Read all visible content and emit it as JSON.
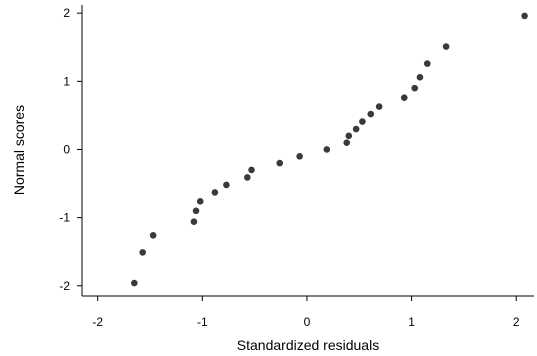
{
  "chart_data": {
    "type": "scatter",
    "xlabel": "Standardized residuals",
    "ylabel": "Normal scores",
    "xlim": [
      -2.15,
      2.17
    ],
    "ylim": [
      -2.15,
      2.12
    ],
    "xticks": [
      -2,
      -1,
      0,
      1,
      2
    ],
    "yticks": [
      -2,
      -1,
      0,
      1,
      2
    ],
    "xtick_labels": [
      "-2",
      "-1",
      "0",
      "1",
      "2"
    ],
    "ytick_labels": [
      "-2",
      "-1",
      "0",
      "1",
      "2"
    ],
    "grid": false,
    "point_color": "#3a3a3a",
    "points": [
      {
        "x": -1.65,
        "y": -1.96
      },
      {
        "x": -1.57,
        "y": -1.51
      },
      {
        "x": -1.47,
        "y": -1.26
      },
      {
        "x": -1.08,
        "y": -1.06
      },
      {
        "x": -1.06,
        "y": -0.9
      },
      {
        "x": -1.02,
        "y": -0.76
      },
      {
        "x": -0.88,
        "y": -0.63
      },
      {
        "x": -0.77,
        "y": -0.52
      },
      {
        "x": -0.57,
        "y": -0.41
      },
      {
        "x": -0.53,
        "y": -0.3
      },
      {
        "x": -0.26,
        "y": -0.2
      },
      {
        "x": -0.07,
        "y": -0.1
      },
      {
        "x": 0.19,
        "y": 0.0
      },
      {
        "x": 0.38,
        "y": 0.1
      },
      {
        "x": 0.4,
        "y": 0.2
      },
      {
        "x": 0.47,
        "y": 0.3
      },
      {
        "x": 0.53,
        "y": 0.41
      },
      {
        "x": 0.61,
        "y": 0.52
      },
      {
        "x": 0.69,
        "y": 0.63
      },
      {
        "x": 0.93,
        "y": 0.76
      },
      {
        "x": 1.03,
        "y": 0.9
      },
      {
        "x": 1.08,
        "y": 1.06
      },
      {
        "x": 1.15,
        "y": 1.26
      },
      {
        "x": 1.33,
        "y": 1.51
      },
      {
        "x": 2.08,
        "y": 1.96
      }
    ]
  }
}
